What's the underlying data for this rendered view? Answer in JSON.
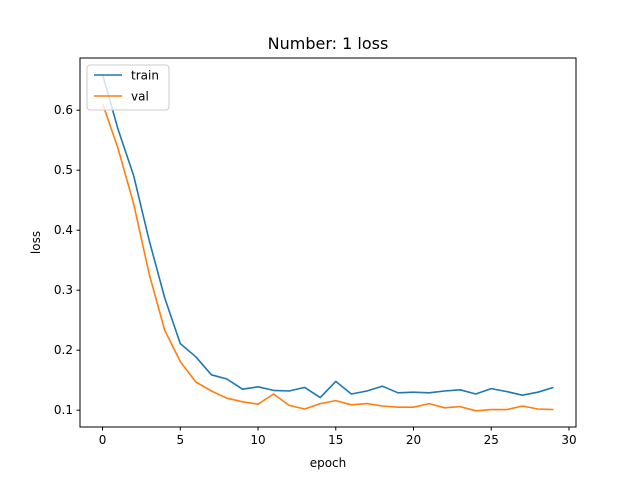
{
  "chart_data": {
    "type": "line",
    "title": "Number: 1 loss",
    "xlabel": "epoch",
    "ylabel": "loss",
    "xlim": [
      -1.45,
      30.45
    ],
    "ylim": [
      0.072,
      0.687
    ],
    "xticks": [
      0,
      5,
      10,
      15,
      20,
      25,
      30
    ],
    "xtick_labels": [
      "0",
      "5",
      "10",
      "15",
      "20",
      "25",
      "30"
    ],
    "yticks": [
      0.1,
      0.2,
      0.3,
      0.4,
      0.5,
      0.6
    ],
    "ytick_labels": [
      "0.1",
      "0.2",
      "0.3",
      "0.4",
      "0.5",
      "0.6"
    ],
    "grid": false,
    "legend_position": "top-left",
    "x": [
      0,
      1,
      2,
      3,
      4,
      5,
      6,
      7,
      8,
      9,
      10,
      11,
      12,
      13,
      14,
      15,
      16,
      17,
      18,
      19,
      20,
      21,
      22,
      23,
      24,
      25,
      26,
      27,
      28,
      29
    ],
    "series": [
      {
        "name": "train",
        "color": "#1f77b4",
        "values": [
          0.66,
          0.568,
          0.491,
          0.383,
          0.287,
          0.211,
          0.189,
          0.159,
          0.152,
          0.135,
          0.139,
          0.133,
          0.132,
          0.138,
          0.121,
          0.148,
          0.127,
          0.132,
          0.14,
          0.129,
          0.13,
          0.129,
          0.132,
          0.134,
          0.127,
          0.136,
          0.131,
          0.125,
          0.13,
          0.138
        ]
      },
      {
        "name": "val",
        "color": "#ff7f0e",
        "values": [
          0.611,
          0.536,
          0.444,
          0.327,
          0.233,
          0.181,
          0.147,
          0.132,
          0.12,
          0.114,
          0.11,
          0.127,
          0.108,
          0.102,
          0.111,
          0.116,
          0.109,
          0.111,
          0.107,
          0.105,
          0.105,
          0.111,
          0.104,
          0.106,
          0.099,
          0.101,
          0.101,
          0.107,
          0.102,
          0.101
        ]
      }
    ]
  }
}
